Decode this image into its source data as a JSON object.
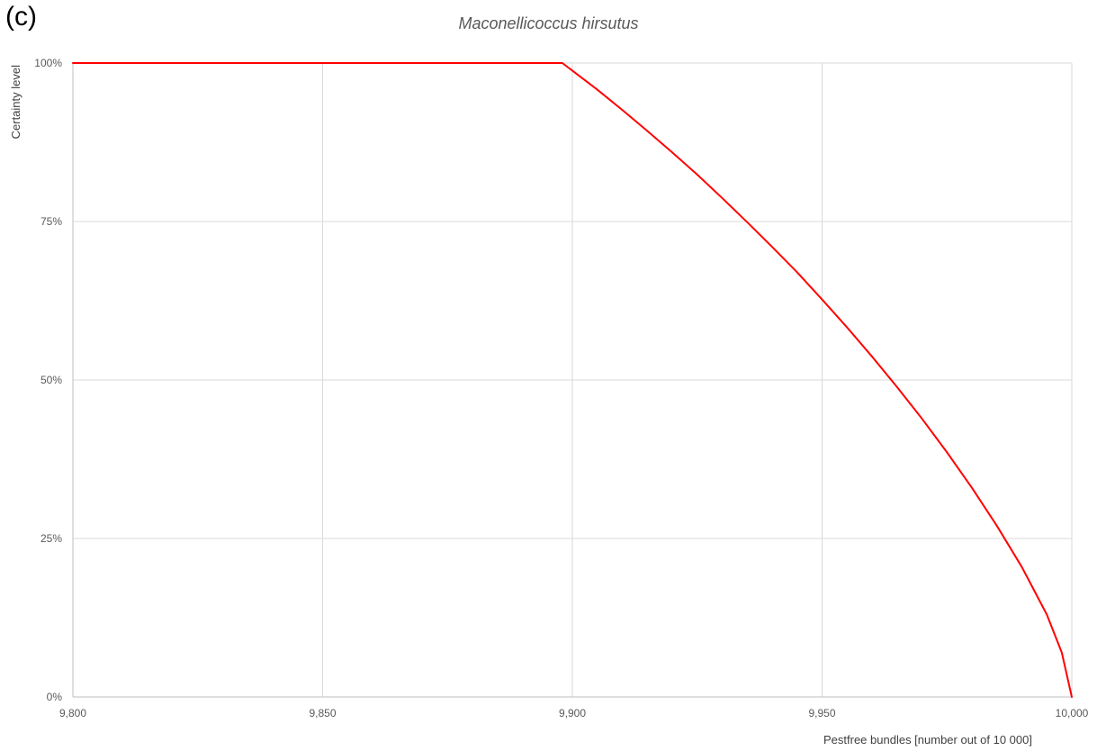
{
  "panel_label": "(c)",
  "chart_data": {
    "type": "line",
    "title": "Maconellicoccus hirsutus",
    "xlabel": "Pestfree bundles [number out of 10 000]",
    "ylabel": "Certainty level",
    "xlim": [
      9800,
      10000
    ],
    "ylim": [
      0,
      1
    ],
    "x_ticks": [
      9800,
      9850,
      9900,
      9950,
      10000
    ],
    "x_tick_labels": [
      "9,800",
      "9,850",
      "9,900",
      "9,950",
      "10,000"
    ],
    "y_ticks": [
      0,
      0.25,
      0.5,
      0.75,
      1
    ],
    "y_tick_labels": [
      "0%",
      "25%",
      "50%",
      "75%",
      "100%"
    ],
    "grid": true,
    "series": [
      {
        "color": "#ff0000",
        "x": [
          9800,
          9850,
          9898,
          9900,
          9905,
          9910,
          9915,
          9920,
          9925,
          9930,
          9935,
          9940,
          9945,
          9950,
          9955,
          9960,
          9965,
          9970,
          9975,
          9980,
          9985,
          9990,
          9995,
          9998,
          10000
        ],
        "y": [
          1,
          1,
          1,
          0.988,
          0.958,
          0.926,
          0.893,
          0.859,
          0.824,
          0.787,
          0.749,
          0.71,
          0.67,
          0.627,
          0.583,
          0.537,
          0.489,
          0.439,
          0.386,
          0.33,
          0.27,
          0.205,
          0.13,
          0.07,
          0
        ]
      }
    ]
  }
}
